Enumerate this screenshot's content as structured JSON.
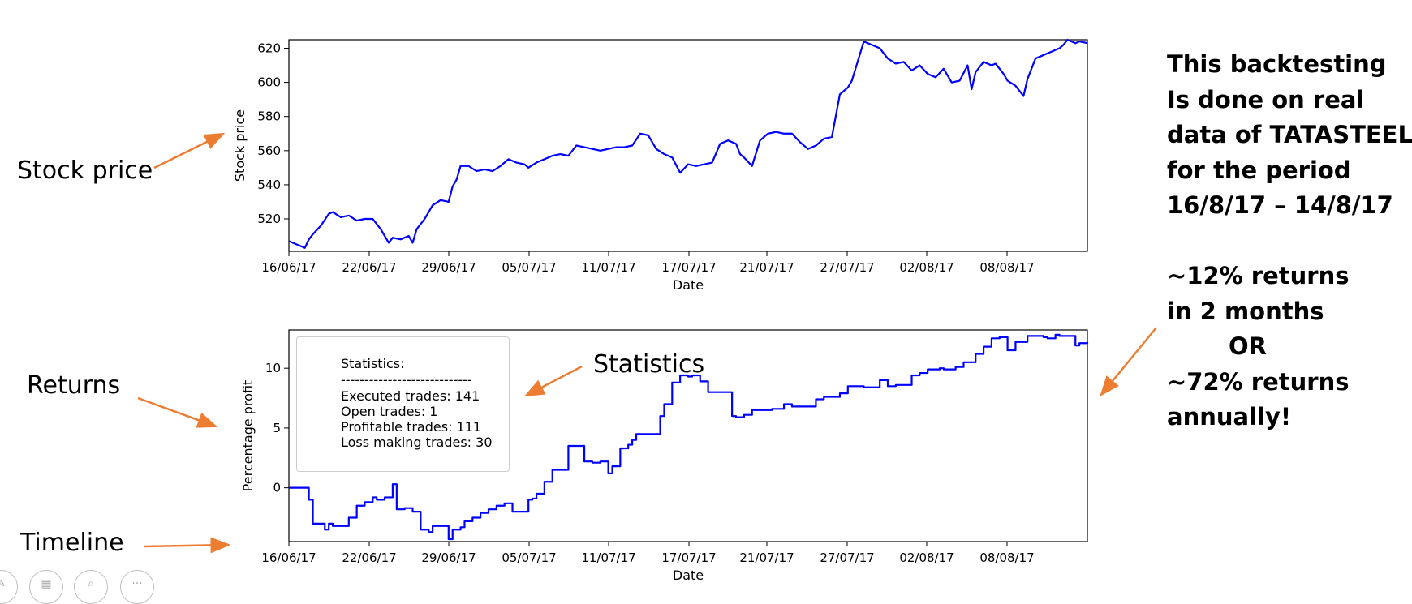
{
  "chart_data": [
    {
      "type": "line",
      "xlabel": "Date",
      "ylabel": "Stock price",
      "ylim": [
        501,
        625
      ],
      "yticks": [
        520,
        540,
        560,
        580,
        600,
        620
      ],
      "xtick_labels": [
        "16/06/17",
        "22/06/17",
        "29/06/17",
        "05/07/17",
        "11/07/17",
        "17/07/17",
        "21/07/17",
        "27/07/17",
        "02/08/17",
        "08/08/17"
      ],
      "grid": false,
      "line_color": "#0000ff",
      "series": [
        {
          "x": [
            0.0,
            0.02,
            0.025,
            0.03,
            0.04,
            0.05,
            0.055,
            0.065,
            0.075,
            0.085,
            0.095,
            0.105,
            0.115,
            0.125,
            0.13,
            0.14,
            0.15,
            0.155,
            0.16,
            0.17,
            0.18,
            0.19,
            0.2,
            0.205,
            0.21,
            0.215,
            0.225,
            0.235,
            0.245,
            0.255,
            0.265,
            0.275,
            0.285,
            0.295,
            0.3,
            0.31,
            0.32,
            0.33,
            0.34,
            0.35,
            0.36,
            0.37,
            0.38,
            0.39,
            0.4,
            0.41,
            0.42,
            0.43,
            0.44,
            0.45,
            0.46,
            0.47,
            0.48,
            0.49,
            0.5,
            0.51,
            0.52,
            0.53,
            0.54,
            0.55,
            0.56,
            0.565,
            0.57,
            0.58,
            0.59,
            0.6,
            0.61,
            0.62,
            0.63,
            0.64,
            0.65,
            0.66,
            0.67,
            0.68,
            0.69,
            0.7,
            0.705,
            0.72,
            0.74,
            0.75,
            0.76,
            0.77,
            0.78,
            0.79,
            0.8,
            0.81,
            0.82,
            0.83,
            0.84,
            0.85,
            0.855,
            0.86,
            0.87,
            0.88,
            0.885,
            0.895,
            0.9,
            0.91,
            0.92,
            0.925,
            0.935,
            0.945,
            0.955,
            0.965,
            0.97,
            0.975,
            0.985,
            0.99,
            1.0
          ],
          "y": [
            507,
            503,
            508,
            511,
            516,
            523,
            524,
            521,
            522,
            519,
            520,
            520,
            514,
            506,
            509,
            508,
            510,
            506,
            514,
            520,
            528,
            531,
            530,
            539,
            543,
            551,
            551,
            548,
            549,
            548,
            551,
            555,
            553,
            552,
            550,
            553,
            555,
            557,
            558,
            557,
            563,
            562,
            561,
            560,
            561,
            562,
            562,
            563,
            570,
            569,
            561,
            558,
            556,
            547,
            552,
            551,
            552,
            553,
            564,
            566,
            564,
            558,
            556,
            551,
            566,
            570,
            571,
            570,
            570,
            565,
            561,
            563,
            567,
            568,
            593,
            597,
            601,
            624,
            620,
            614,
            611,
            612,
            607,
            610,
            605,
            603,
            608,
            600,
            601,
            610,
            596,
            606,
            612,
            610,
            611,
            605,
            601,
            598,
            592,
            602,
            614,
            616,
            618,
            620,
            622,
            625,
            623,
            624,
            623
          ]
        }
      ]
    },
    {
      "type": "line",
      "xlabel": "Date",
      "ylabel": "Percentage profit",
      "ylim": [
        -4.5,
        13.2
      ],
      "yticks": [
        0,
        5,
        10
      ],
      "xtick_labels": [
        "16/06/17",
        "22/06/17",
        "29/06/17",
        "05/07/17",
        "11/07/17",
        "17/07/17",
        "21/07/17",
        "27/07/17",
        "02/08/17",
        "08/08/17"
      ],
      "grid": false,
      "line_color": "#0000ff",
      "step": true,
      "series": [
        {
          "x": [
            0.0,
            0.025,
            0.03,
            0.045,
            0.05,
            0.055,
            0.075,
            0.085,
            0.095,
            0.105,
            0.11,
            0.12,
            0.13,
            0.135,
            0.145,
            0.155,
            0.165,
            0.175,
            0.18,
            0.2,
            0.205,
            0.215,
            0.22,
            0.23,
            0.24,
            0.25,
            0.26,
            0.27,
            0.28,
            0.3,
            0.305,
            0.31,
            0.32,
            0.33,
            0.35,
            0.37,
            0.38,
            0.39,
            0.4,
            0.405,
            0.415,
            0.425,
            0.43,
            0.435,
            0.465,
            0.47,
            0.48,
            0.49,
            0.5,
            0.505,
            0.515,
            0.525,
            0.555,
            0.56,
            0.57,
            0.58,
            0.605,
            0.62,
            0.63,
            0.66,
            0.67,
            0.69,
            0.7,
            0.72,
            0.74,
            0.75,
            0.76,
            0.78,
            0.79,
            0.8,
            0.815,
            0.82,
            0.835,
            0.845,
            0.86,
            0.87,
            0.88,
            0.89,
            0.9,
            0.91,
            0.925,
            0.945,
            0.95,
            0.96,
            0.965,
            0.985,
            0.99,
            1.0
          ],
          "y": [
            0,
            -1.0,
            -3.0,
            -3.5,
            -3.0,
            -3.2,
            -2.5,
            -1.5,
            -1.2,
            -0.8,
            -1.0,
            -0.8,
            0.3,
            -1.8,
            -1.7,
            -2.0,
            -3.5,
            -3.7,
            -3.2,
            -4.3,
            -3.5,
            -3.3,
            -2.8,
            -2.5,
            -2.1,
            -1.8,
            -1.5,
            -1.3,
            -2.0,
            -1.0,
            -0.9,
            -0.5,
            0.5,
            1.5,
            3.5,
            2.2,
            2.1,
            2.2,
            1.2,
            1.8,
            3.3,
            3.6,
            4.0,
            4.5,
            6.0,
            7.0,
            8.8,
            9.4,
            9.3,
            9.4,
            8.9,
            8.0,
            6.0,
            5.9,
            6.1,
            6.5,
            6.6,
            7.0,
            6.8,
            7.4,
            7.6,
            7.9,
            8.5,
            8.4,
            9.0,
            8.5,
            8.6,
            9.4,
            9.6,
            9.9,
            10.0,
            9.9,
            10.1,
            10.5,
            11.2,
            11.8,
            12.5,
            12.6,
            11.5,
            12.2,
            12.7,
            12.6,
            12.5,
            12.8,
            12.7,
            11.9,
            12.1,
            12.2
          ]
        }
      ]
    }
  ],
  "callouts": {
    "stock_price": "Stock price",
    "returns": "Returns",
    "timeline": "Timeline",
    "statistics": "Statistics"
  },
  "stats_box": {
    "title": "Statistics:",
    "divider": "----------------------------",
    "executed": "Executed trades: 141",
    "open": "Open trades: 1",
    "profitable": "Profitable trades: 111",
    "loss": "Loss making trades: 30"
  },
  "note": {
    "line1": "This backtesting",
    "line2": "Is done on real",
    "line3": "data of TATASTEEL",
    "line4": "for the period",
    "line5": "16/8/17 – 14/8/17",
    "line6": "~12% returns",
    "line7": "in 2 months",
    "line8": "OR",
    "line9": "~72% returns",
    "line10": "annually!"
  },
  "colors": {
    "line": "#0000ff",
    "arrow": "#ed7d31"
  },
  "icons": [
    "pen-icon",
    "slide-icon",
    "zoom-icon",
    "more-icon"
  ]
}
